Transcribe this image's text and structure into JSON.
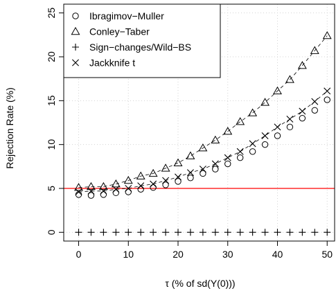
{
  "chart_data": {
    "type": "scatter",
    "title": "",
    "xlabel": "τ (% of sd(Y(0)))",
    "ylabel": "Rejection Rate (%)",
    "xlim": [
      -3,
      51.5
    ],
    "ylim": [
      -1,
      26
    ],
    "xticks": [
      0,
      10,
      20,
      30,
      40,
      50
    ],
    "yticks": [
      0,
      5,
      10,
      15,
      20,
      25
    ],
    "grid": true,
    "legend_position": "top-left",
    "reference_line": {
      "y": 5,
      "color": "#ff0000"
    },
    "x": [
      0,
      2.5,
      5,
      7.5,
      10,
      12.5,
      15,
      17.5,
      20,
      22.5,
      25,
      27.5,
      30,
      32.5,
      35,
      37.5,
      40,
      42.5,
      45,
      47.5,
      50
    ],
    "series": [
      {
        "name": "Ibragimov−Muller",
        "marker": "circle",
        "connect": false,
        "values": [
          4.3,
          4.2,
          4.3,
          4.5,
          4.6,
          4.9,
          5.1,
          5.4,
          5.8,
          6.2,
          6.7,
          7.2,
          7.8,
          8.5,
          9.2,
          10.0,
          11.0,
          12.0,
          13.0,
          13.9,
          15.1
        ]
      },
      {
        "name": "Conley−Taber",
        "marker": "triangle",
        "connect": true,
        "values": [
          5.1,
          5.2,
          5.2,
          5.5,
          5.9,
          6.4,
          6.7,
          7.3,
          7.9,
          8.7,
          9.6,
          10.5,
          11.5,
          12.6,
          13.6,
          14.8,
          16.1,
          17.4,
          19.0,
          20.7,
          22.4
        ]
      },
      {
        "name": "Sign−changes/Wild−BS",
        "marker": "plus",
        "connect": false,
        "values": [
          0,
          0,
          0,
          0,
          0,
          0,
          0,
          0,
          0,
          0,
          0,
          0,
          0,
          0,
          0,
          0,
          0,
          0,
          0,
          0,
          0
        ]
      },
      {
        "name": "Jackknife t",
        "marker": "cross",
        "connect": true,
        "values": [
          4.6,
          4.7,
          4.7,
          4.9,
          5.0,
          5.3,
          5.5,
          5.9,
          6.3,
          6.8,
          7.2,
          7.8,
          8.5,
          9.2,
          10.1,
          11.0,
          12.0,
          12.9,
          13.8,
          14.9,
          16.1
        ]
      }
    ]
  }
}
